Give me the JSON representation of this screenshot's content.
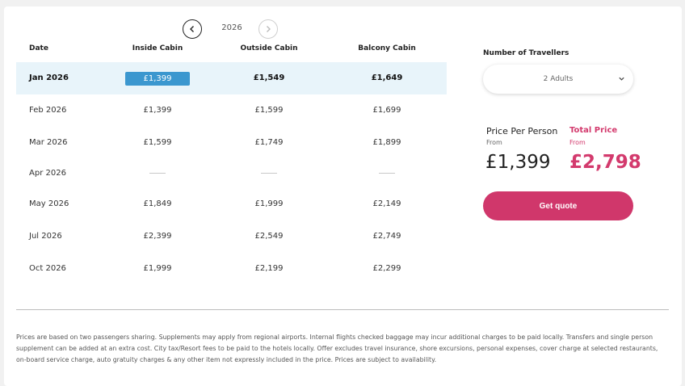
{
  "year_nav": {
    "year": "2026",
    "prev_icon": "chevron-left-icon",
    "next_icon": "chevron-right-icon"
  },
  "table": {
    "headers": [
      "Date",
      "Inside Cabin",
      "Outside Cabin",
      "Balcony Cabin"
    ],
    "rows": [
      {
        "date": "Jan 2026",
        "inside": "£1,399",
        "outside": "£1,549",
        "balcony": "£1,649",
        "selected": true
      },
      {
        "date": "Feb 2026",
        "inside": "£1,399",
        "outside": "£1,599",
        "balcony": "£1,699"
      },
      {
        "date": "Mar 2026",
        "inside": "£1,599",
        "outside": "£1,749",
        "balcony": "£1,899"
      },
      {
        "date": "Apr 2026",
        "inside": "",
        "outside": "",
        "balcony": "",
        "unavailable": true
      },
      {
        "date": "May 2026",
        "inside": "£1,849",
        "outside": "£1,999",
        "balcony": "£2,149"
      },
      {
        "date": "Jul 2026",
        "inside": "£2,399",
        "outside": "£2,549",
        "balcony": "£2,749"
      },
      {
        "date": "Oct 2026",
        "inside": "£1,999",
        "outside": "£2,199",
        "balcony": "£2,299"
      }
    ]
  },
  "travellers": {
    "label": "Number of Travellers",
    "value": "2 Adults"
  },
  "pricing": {
    "per_person_label": "Price Per Person",
    "per_person_from": "From",
    "per_person_value": "£1,399",
    "total_label": "Total Price",
    "total_from": "From",
    "total_value": "£2,798"
  },
  "actions": {
    "quote_label": "Get quote"
  },
  "disclaimer": "Prices are based on two passengers sharing. Supplements may apply from regional airports. Internal flights checked baggage may incur additional charges to be paid locally. Transfers and single person supplement can be added at an extra cost. City tax/Resort fees to be paid to the hotels locally. Offer excludes travel insurance, shore excursions, personal expenses, cover charge at selected restaurants, on-board service charge, auto gratuity charges & any other item not expressly included in the price. Prices are subject to availability.",
  "colors": {
    "accent_pink": "#d0376b",
    "selected_blue": "#3b97cf",
    "selected_row": "#e8f4fa"
  }
}
